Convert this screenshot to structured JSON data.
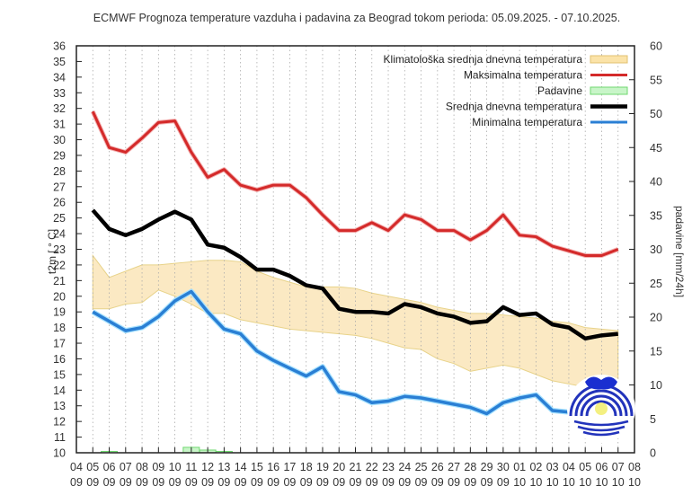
{
  "chart_data": {
    "type": "line",
    "title": "ECMWF Prognoza temperature vazduha i padavina za Beograd tokom perioda: 05.09.2025. - 07.10.2025.",
    "ylabel": "t2m [ ° C]",
    "y2label": "padavine [mm/24h]",
    "ylim": [
      10,
      36
    ],
    "y2lim": [
      0,
      60
    ],
    "yticks": [
      10,
      11,
      12,
      13,
      14,
      15,
      16,
      17,
      18,
      19,
      20,
      21,
      22,
      23,
      24,
      25,
      26,
      27,
      28,
      29,
      30,
      31,
      32,
      33,
      34,
      35,
      36
    ],
    "y2ticks": [
      0,
      5,
      10,
      15,
      20,
      25,
      30,
      35,
      40,
      45,
      50,
      55,
      60
    ],
    "grid": "vertical-dotted",
    "legend_position": "top-right",
    "xtick_labels": [
      [
        "04",
        "09"
      ],
      [
        "05",
        "09"
      ],
      [
        "06",
        "09"
      ],
      [
        "07",
        "09"
      ],
      [
        "08",
        "09"
      ],
      [
        "09",
        "09"
      ],
      [
        "10",
        "09"
      ],
      [
        "11",
        "09"
      ],
      [
        "12",
        "09"
      ],
      [
        "13",
        "09"
      ],
      [
        "14",
        "09"
      ],
      [
        "15",
        "09"
      ],
      [
        "16",
        "09"
      ],
      [
        "17",
        "09"
      ],
      [
        "18",
        "09"
      ],
      [
        "19",
        "09"
      ],
      [
        "20",
        "09"
      ],
      [
        "21",
        "09"
      ],
      [
        "22",
        "09"
      ],
      [
        "23",
        "09"
      ],
      [
        "24",
        "09"
      ],
      [
        "25",
        "09"
      ],
      [
        "26",
        "09"
      ],
      [
        "27",
        "09"
      ],
      [
        "28",
        "09"
      ],
      [
        "29",
        "09"
      ],
      [
        "30",
        "09"
      ],
      [
        "01",
        "10"
      ],
      [
        "02",
        "10"
      ],
      [
        "03",
        "10"
      ],
      [
        "04",
        "10"
      ],
      [
        "05",
        "10"
      ],
      [
        "06",
        "10"
      ],
      [
        "07",
        "10"
      ],
      [
        "08",
        "10"
      ]
    ],
    "x_start_index": 1,
    "legend": [
      {
        "key": "climatology",
        "label": "Klimatološka srednja dnevna temperatura",
        "color": "#f5d98e",
        "type": "band"
      },
      {
        "key": "max",
        "label": "Maksimalna temperatura",
        "color": "#d42a2a",
        "type": "line"
      },
      {
        "key": "precip",
        "label": "Padavine",
        "color": "#90e890",
        "type": "bar"
      },
      {
        "key": "mean",
        "label": "Srednja dnevna temperatura",
        "color": "#000000",
        "type": "line"
      },
      {
        "key": "min",
        "label": "Minimalna temperatura",
        "color": "#2a7fd4",
        "type": "line"
      }
    ],
    "series": [
      {
        "name": "Maksimalna temperatura",
        "key": "max",
        "color": "#d42a2a",
        "values": [
          31.8,
          29.5,
          29.2,
          30.1,
          31.1,
          31.2,
          29.2,
          27.6,
          28.1,
          27.1,
          26.8,
          27.1,
          27.1,
          26.3,
          25.2,
          24.2,
          24.2,
          24.7,
          24.2,
          25.2,
          24.9,
          24.2,
          24.2,
          23.6,
          24.2,
          25.2,
          23.9,
          23.8,
          23.2,
          22.9,
          22.6,
          22.6,
          23.0
        ]
      },
      {
        "name": "Srednja dnevna temperatura",
        "key": "mean",
        "color": "#000000",
        "values": [
          25.5,
          24.3,
          23.9,
          24.3,
          24.9,
          25.4,
          24.9,
          23.3,
          23.1,
          22.5,
          21.7,
          21.7,
          21.3,
          20.7,
          20.5,
          19.2,
          19.0,
          19.0,
          18.9,
          19.5,
          19.3,
          18.9,
          18.7,
          18.3,
          18.4,
          19.3,
          18.8,
          18.9,
          18.2,
          18.0,
          17.3,
          17.5,
          17.6
        ]
      },
      {
        "name": "Minimalna temperatura",
        "key": "min",
        "color": "#2a7fd4",
        "values": [
          19.0,
          18.4,
          17.8,
          18.0,
          18.7,
          19.7,
          20.3,
          19.0,
          17.9,
          17.6,
          16.5,
          15.9,
          15.4,
          14.9,
          15.5,
          13.9,
          13.7,
          13.2,
          13.3,
          13.6,
          13.5,
          13.3,
          13.1,
          12.9,
          12.5,
          13.2,
          13.5,
          13.7,
          12.7,
          12.6,
          12.2,
          12.0,
          11.9
        ]
      },
      {
        "name": "Klimatološka srednja dnevna temperatura (gornja granica)",
        "key": "clim_upper",
        "values": [
          22.6,
          21.2,
          21.6,
          22.0,
          22.0,
          22.1,
          22.2,
          22.3,
          22.3,
          22.2,
          21.6,
          21.2,
          20.9,
          20.6,
          20.6,
          20.6,
          20.5,
          20.2,
          20.0,
          19.8,
          19.6,
          19.3,
          19.1,
          18.9,
          18.9,
          18.8,
          18.7,
          18.6,
          18.4,
          18.3,
          18.0,
          17.9,
          17.8
        ]
      },
      {
        "name": "Klimatološka srednja dnevna temperatura (donja granica)",
        "key": "clim_lower",
        "values": [
          19.2,
          19.2,
          19.5,
          19.6,
          20.4,
          20.0,
          19.5,
          18.9,
          18.9,
          18.5,
          18.3,
          18.1,
          17.9,
          17.8,
          17.7,
          17.6,
          17.5,
          17.3,
          17.0,
          16.7,
          16.6,
          16.0,
          15.7,
          15.2,
          15.4,
          15.6,
          15.4,
          15.0,
          14.6,
          14.4,
          14.2,
          14.0,
          13.8
        ]
      },
      {
        "name": "Padavine",
        "key": "precip",
        "axis": "y2",
        "color": "#90e890",
        "values": [
          0,
          0.2,
          0,
          0,
          0,
          0,
          0.8,
          0.4,
          0.2,
          0,
          0,
          0,
          0,
          0,
          0,
          0,
          0,
          0,
          0,
          0,
          0,
          0,
          0,
          0,
          0,
          0,
          0,
          0,
          0,
          0,
          0,
          0,
          0
        ]
      }
    ]
  },
  "logo": {
    "name": "RHMZ Srbije logo"
  }
}
